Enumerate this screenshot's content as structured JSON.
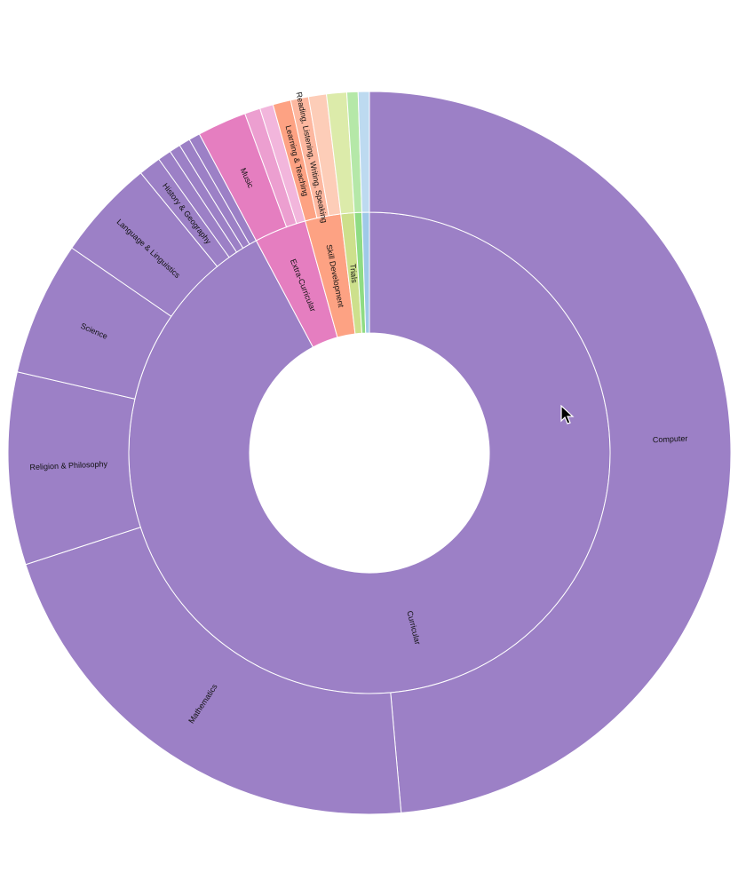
{
  "chart_data": {
    "type": "sunburst",
    "unit": "percent",
    "title": "",
    "inner": [
      {
        "label": "Curricular",
        "value": 92.2,
        "color": "#9c80c6"
      },
      {
        "label": "Extra-Curricular",
        "value": 3.5,
        "color": "#e57ec0"
      },
      {
        "label": "Skill Development",
        "value": 2.4,
        "color": "#fda283"
      },
      {
        "label": "Trials",
        "value": 0.9,
        "color": "#cde08c"
      },
      {
        "label": "",
        "value": 0.5,
        "color": "#8fdc84"
      },
      {
        "label": "",
        "value": 0.5,
        "color": "#9fc9e8"
      }
    ],
    "outer": [
      {
        "label": "Computer",
        "parent": "Curricular",
        "value": 48.6,
        "color": "#9c80c6"
      },
      {
        "label": "Mathematics",
        "parent": "Curricular",
        "value": 21.4,
        "color": "#9c80c6"
      },
      {
        "label": "Religion & Philosophy",
        "parent": "Curricular",
        "value": 8.6,
        "color": "#9c80c6"
      },
      {
        "label": "Science",
        "parent": "Curricular",
        "value": 6.0,
        "color": "#9c80c6"
      },
      {
        "label": "Language & Linguistics",
        "parent": "Curricular",
        "value": 4.5,
        "color": "#9c80c6"
      },
      {
        "label": "History & Geography",
        "parent": "Curricular",
        "value": 1.0,
        "color": "#9c80c6"
      },
      {
        "label": "",
        "parent": "Curricular",
        "value": 0.6,
        "color": "#9c80c6"
      },
      {
        "label": "",
        "parent": "Curricular",
        "value": 0.5,
        "color": "#9c80c6"
      },
      {
        "label": "",
        "parent": "Curricular",
        "value": 0.5,
        "color": "#9c80c6"
      },
      {
        "label": "",
        "parent": "Curricular",
        "value": 0.5,
        "color": "#9c80c6"
      },
      {
        "label": "Music",
        "parent": "Extra-Curricular",
        "value": 2.2,
        "color": "#e57ec0"
      },
      {
        "label": "",
        "parent": "Extra-Curricular",
        "value": 0.7,
        "color": "#ec9fd0"
      },
      {
        "label": "",
        "parent": "Extra-Curricular",
        "value": 0.6,
        "color": "#f2b6dc"
      },
      {
        "label": "Learning & Teaching",
        "parent": "Skill Development",
        "value": 0.8,
        "color": "#fda283"
      },
      {
        "label": "Reading, Listening, Writing, Speaking",
        "parent": "Skill Development",
        "value": 0.8,
        "color": "#fdb8a0"
      },
      {
        "label": "",
        "parent": "Skill Development",
        "value": 0.8,
        "color": "#fdcdb8"
      },
      {
        "label": "",
        "parent": "Trials",
        "value": 0.9,
        "color": "#dcebaa"
      },
      {
        "label": "",
        "parent": "",
        "value": 0.5,
        "color": "#b5e8a8"
      },
      {
        "label": "",
        "parent": "",
        "value": 0.5,
        "color": "#bddaf0"
      }
    ]
  }
}
